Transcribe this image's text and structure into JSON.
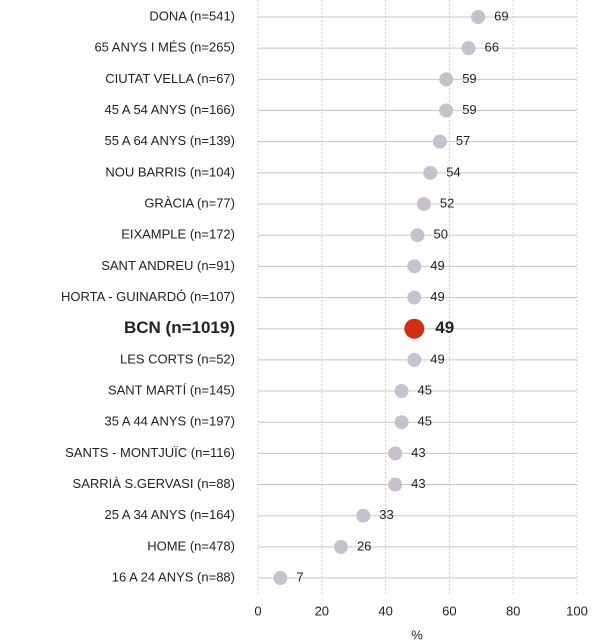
{
  "chart_data": {
    "type": "dot",
    "categories": [
      "DONA (n=541)",
      "65 ANYS I MÉS (n=265)",
      "CIUTAT VELLA (n=67)",
      "45 A 54 ANYS (n=166)",
      "55 A 64 ANYS (n=139)",
      "NOU BARRIS (n=104)",
      "GRÀCIA (n=77)",
      "EIXAMPLE (n=172)",
      "SANT ANDREU (n=91)",
      "HORTA - GUINARDÓ (n=107)",
      "BCN (n=1019)",
      "LES CORTS (n=52)",
      "SANT MARTÍ (n=145)",
      "35 A 44 ANYS (n=197)",
      "SANTS - MONTJUÏC (n=116)",
      "SARRIÀ  S.GERVASI (n=88)",
      "25 A 34 ANYS (n=164)",
      "HOME (n=478)",
      "16 A 24 ANYS (n=88)"
    ],
    "values": [
      69,
      66,
      59,
      59,
      57,
      54,
      52,
      50,
      49,
      49,
      49,
      49,
      45,
      45,
      43,
      43,
      33,
      26,
      7
    ],
    "color": "#c8c0cf",
    "highlight": 10,
    "highlight_color": "#d42e12",
    "xlabel": "%",
    "xlim": [
      0,
      100
    ],
    "xticks": [
      0,
      20,
      40,
      60,
      80,
      100
    ],
    "grid": true
  }
}
